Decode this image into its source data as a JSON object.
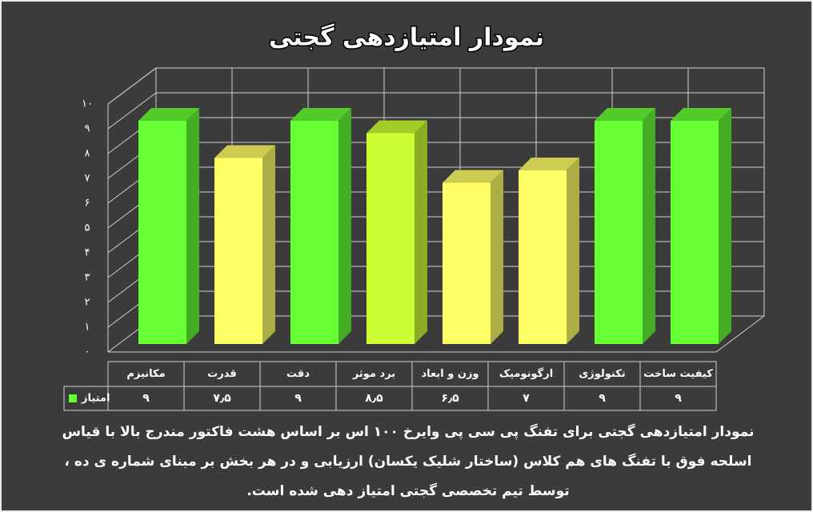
{
  "chart_data": {
    "type": "bar3d",
    "title": "نمودار امتیازدهی گجتی",
    "categories": [
      "مکانیزم",
      "قدرت",
      "دقت",
      "برد موثر",
      "وزن و ابعاد",
      "ارگونومیک",
      "تکنولوژی",
      "کیفیت ساخت"
    ],
    "series": [
      {
        "name": "امتیاز",
        "color": "#66ff33",
        "values": [
          9,
          7.5,
          9,
          8.5,
          6.5,
          7,
          9,
          9
        ],
        "value_labels": [
          "۹",
          "۷٫۵",
          "۹",
          "۸٫۵",
          "۶٫۵",
          "۷",
          "۹",
          "۹"
        ]
      }
    ],
    "bar_colors": [
      "#66ff33",
      "#ffff66",
      "#66ff33",
      "#ccff33",
      "#ffff66",
      "#ffff66",
      "#66ff33",
      "#66ff33"
    ],
    "ylim": [
      0,
      10
    ],
    "yticks": [
      {
        "value": 0,
        "label": "۰"
      },
      {
        "value": 1,
        "label": "۱"
      },
      {
        "value": 2,
        "label": "۲"
      },
      {
        "value": 3,
        "label": "۳"
      },
      {
        "value": 4,
        "label": "۴"
      },
      {
        "value": 5,
        "label": "۵"
      },
      {
        "value": 6,
        "label": "۶"
      },
      {
        "value": 7,
        "label": "۷"
      },
      {
        "value": 8,
        "label": "۸"
      },
      {
        "value": 9,
        "label": "۹"
      },
      {
        "value": 10,
        "label": "۱۰"
      }
    ],
    "grid": true,
    "caption": [
      "نمودار امتیازدهی گجتی برای تفنگ پی سی پی وایرخ ۱۰۰ اس بر اساس هشت فاکتور مندرج بالا با قیاس",
      "اسلحه فوق با تفنگ های هم کلاس (ساختار شلیک یکسان) ارزیابی و در هر بخش بر مبنای شماره ی ده ،",
      "توسط تیم تخصصی گجتی امتیاز دهی شده است."
    ]
  }
}
